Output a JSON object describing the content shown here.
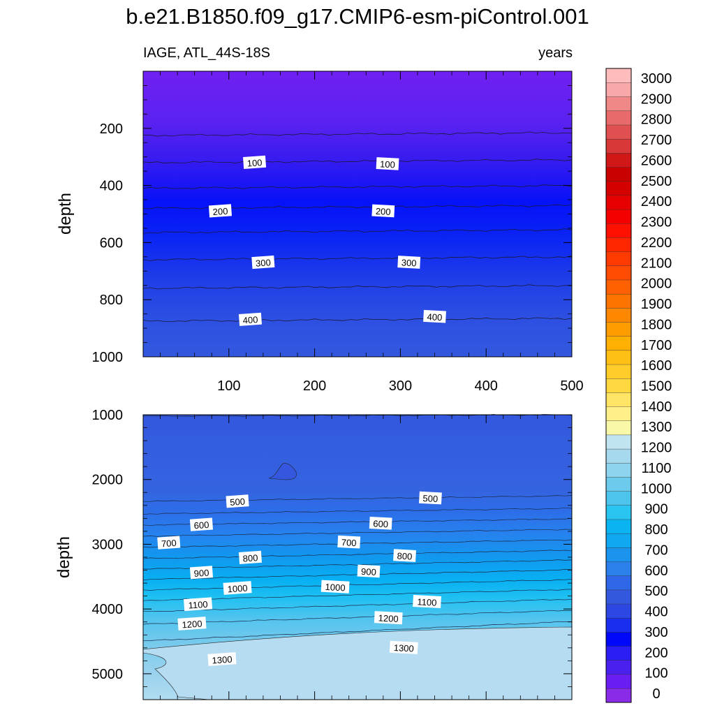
{
  "chart_data": {
    "type": "contour",
    "title": "b.e21.B1850.f09_g17.CMIP6-esm-piControl.001",
    "variable_label": "IAGE, ATL_44S-18S",
    "units_label": "years",
    "x_ticks": [
      "100",
      "200",
      "300",
      "400",
      "500"
    ],
    "xlim": [
      0,
      500
    ],
    "upper_panel": {
      "ylabel": "depth",
      "ylim": [
        0,
        1000
      ],
      "y_ticks": [
        "200",
        "400",
        "600",
        "800",
        "1000"
      ],
      "contour_depths": [
        225,
        320,
        410,
        480,
        565,
        660,
        760,
        875
      ],
      "contour_labels": [
        {
          "text": "100",
          "x": 130,
          "y": 320
        },
        {
          "text": "100",
          "x": 285,
          "y": 325
        },
        {
          "text": "200",
          "x": 90,
          "y": 490
        },
        {
          "text": "200",
          "x": 280,
          "y": 490
        },
        {
          "text": "300",
          "x": 140,
          "y": 670
        },
        {
          "text": "300",
          "x": 310,
          "y": 670
        },
        {
          "text": "400",
          "x": 125,
          "y": 870
        },
        {
          "text": "400",
          "x": 340,
          "y": 860
        }
      ]
    },
    "lower_panel": {
      "ylabel": "depth",
      "ylim": [
        1000,
        5400
      ],
      "y_ticks": [
        "1000",
        "2000",
        "3000",
        "4000",
        "5000"
      ],
      "contour_labels": [
        {
          "text": "500",
          "x": 110,
          "y": 2340
        },
        {
          "text": "500",
          "x": 335,
          "y": 2290
        },
        {
          "text": "600",
          "x": 68,
          "y": 2700
        },
        {
          "text": "600",
          "x": 277,
          "y": 2680
        },
        {
          "text": "700",
          "x": 30,
          "y": 2980
        },
        {
          "text": "700",
          "x": 240,
          "y": 2970
        },
        {
          "text": "800",
          "x": 125,
          "y": 3210
        },
        {
          "text": "800",
          "x": 305,
          "y": 3180
        },
        {
          "text": "900",
          "x": 68,
          "y": 3440
        },
        {
          "text": "900",
          "x": 263,
          "y": 3420
        },
        {
          "text": "1000",
          "x": 110,
          "y": 3680
        },
        {
          "text": "1000",
          "x": 224,
          "y": 3660
        },
        {
          "text": "1100",
          "x": 64,
          "y": 3930
        },
        {
          "text": "1100",
          "x": 331,
          "y": 3890
        },
        {
          "text": "1200",
          "x": 57,
          "y": 4230
        },
        {
          "text": "1200",
          "x": 286,
          "y": 4140
        },
        {
          "text": "1300",
          "x": 92,
          "y": 4780
        },
        {
          "text": "1300",
          "x": 304,
          "y": 4600
        }
      ]
    },
    "colorbar": {
      "levels": [
        "0",
        "100",
        "200",
        "300",
        "400",
        "500",
        "600",
        "700",
        "800",
        "900",
        "1000",
        "1100",
        "1200",
        "1300",
        "1400",
        "1500",
        "1600",
        "1700",
        "1800",
        "1900",
        "2000",
        "2100",
        "2200",
        "2300",
        "2400",
        "2500",
        "2600",
        "2700",
        "2800",
        "2900",
        "3000"
      ],
      "colors": [
        "#8a2be8",
        "#6a1df0",
        "#4a20ee",
        "#2b1ef2",
        "#0008fa",
        "#1a2ef0",
        "#2c47e2",
        "#3358de",
        "#2e68e8",
        "#2b80ec",
        "#1a94ec",
        "#10a8f0",
        "#0ab4f0",
        "#2ac4f0",
        "#4cc4ec",
        "#6ccaec",
        "#8ed4ee",
        "#a6d8ee",
        "#c0e4f0",
        "#f8f8a8",
        "#fff08a",
        "#ffe466",
        "#ffd840",
        "#ffcc2a",
        "#ffbf14",
        "#ffb000",
        "#ff9c00",
        "#ff8800",
        "#ff7400",
        "#ff6000",
        "#ff4c00",
        "#ff3a00",
        "#ff2600",
        "#ff1000",
        "#f40000",
        "#e60000",
        "#d40000",
        "#c80000",
        "#d01818",
        "#d83838",
        "#e05050",
        "#e86a6a",
        "#f08888",
        "#f8a8a8",
        "#ffbcbc"
      ]
    }
  }
}
